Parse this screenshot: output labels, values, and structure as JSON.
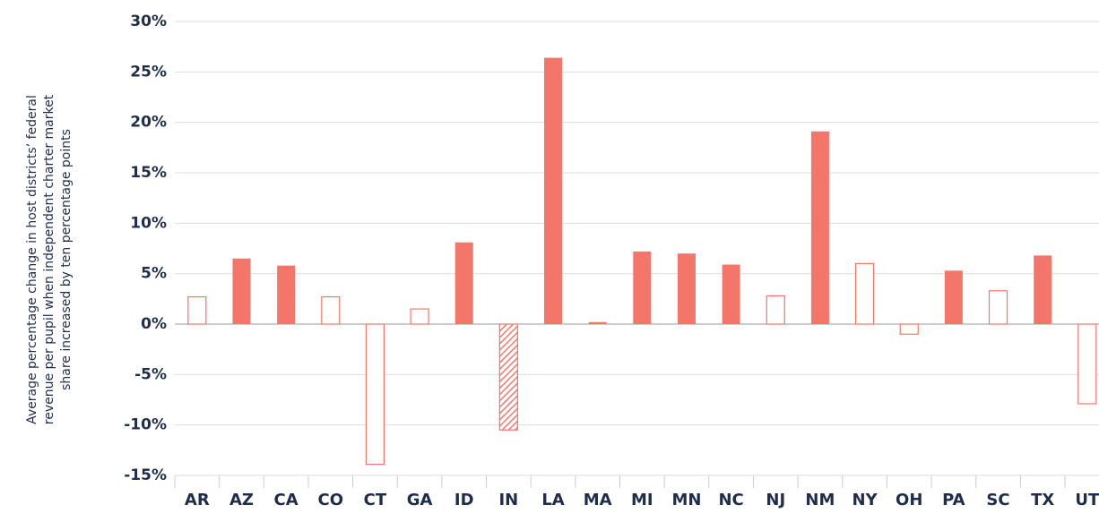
{
  "chart_data": {
    "type": "bar",
    "ylabel": [
      "Average percentage change in host districts’ federal",
      "revenue per pupil when independent charter market",
      "share increased by ten percentage points"
    ],
    "categories": [
      "AR",
      "AZ",
      "CA",
      "CO",
      "CT",
      "GA",
      "ID",
      "IN",
      "LA",
      "MA",
      "MI",
      "MN",
      "NC",
      "NJ",
      "NM",
      "NY",
      "OH",
      "PA",
      "SC",
      "TX",
      "UT"
    ],
    "values": [
      2.7,
      6.5,
      5.8,
      2.7,
      -13.9,
      1.5,
      8.1,
      -10.5,
      26.4,
      0.2,
      7.2,
      7.0,
      5.9,
      2.8,
      19.1,
      6.0,
      -1.0,
      5.3,
      3.3,
      6.8,
      -7.9
    ],
    "bar_styles": [
      "hollow",
      "filled",
      "filled",
      "hollow",
      "hollow",
      "hollow",
      "filled",
      "hatched",
      "filled",
      "filled",
      "filled",
      "filled",
      "filled",
      "hollow",
      "filled",
      "hollow",
      "hollow",
      "filled",
      "hollow",
      "filled",
      "hollow"
    ],
    "color": "#f4766b",
    "ylim": [
      -15,
      30
    ],
    "yticks": [
      {
        "value": -15,
        "label": "-15%"
      },
      {
        "value": -10,
        "label": "-10%"
      },
      {
        "value": -5,
        "label": "-5%"
      },
      {
        "value": 0,
        "label": "0%"
      },
      {
        "value": 5,
        "label": "5%"
      },
      {
        "value": 10,
        "label": "10%"
      },
      {
        "value": 15,
        "label": "15%"
      },
      {
        "value": 20,
        "label": "20%"
      },
      {
        "value": 25,
        "label": "25%"
      },
      {
        "value": 30,
        "label": "30%"
      }
    ],
    "grid": true
  }
}
